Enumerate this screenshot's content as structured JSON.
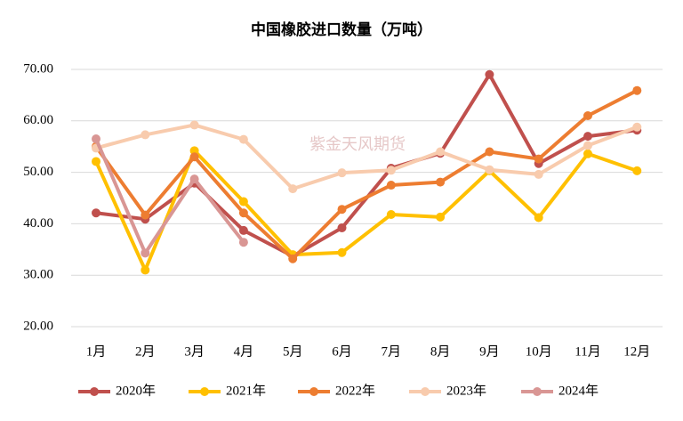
{
  "chart_data": {
    "type": "line",
    "title": "中国橡胶进口数量（万吨）",
    "watermark": "紫金天风期货",
    "categories": [
      "1月",
      "2月",
      "3月",
      "4月",
      "5月",
      "6月",
      "7月",
      "8月",
      "9月",
      "10月",
      "11月",
      "12月"
    ],
    "series": [
      {
        "name": "2020年",
        "color": "#c0504d",
        "values": [
          42.1,
          40.9,
          47.9,
          38.7,
          33.7,
          39.2,
          50.8,
          53.7,
          69.0,
          51.7,
          57.0,
          58.2
        ]
      },
      {
        "name": "2021年",
        "color": "#ffc000",
        "values": [
          52.1,
          31.0,
          54.2,
          44.3,
          34.0,
          34.4,
          41.8,
          41.3,
          50.3,
          41.2,
          53.6,
          50.3
        ]
      },
      {
        "name": "2022年",
        "color": "#ed7d31",
        "values": [
          55.0,
          41.7,
          53.0,
          42.1,
          33.2,
          42.8,
          47.5,
          48.1,
          54.0,
          52.6,
          61.0,
          65.9
        ]
      },
      {
        "name": "2023年",
        "color": "#f8cbad",
        "values": [
          54.7,
          57.3,
          59.2,
          56.4,
          46.8,
          49.9,
          50.4,
          54.0,
          50.5,
          49.6,
          55.2,
          58.8
        ]
      },
      {
        "name": "2024年",
        "color": "#d99694",
        "values": [
          56.5,
          34.3,
          48.7,
          36.4,
          null,
          null,
          null,
          null,
          null,
          null,
          null,
          null
        ]
      }
    ],
    "ylim": [
      20,
      70
    ],
    "yticks": [
      {
        "value": 20,
        "label": "20.00"
      },
      {
        "value": 30,
        "label": "30.00"
      },
      {
        "value": 40,
        "label": "40.00"
      },
      {
        "value": 50,
        "label": "50.00"
      },
      {
        "value": 60,
        "label": "60.00"
      },
      {
        "value": 70,
        "label": "70.00"
      }
    ],
    "grid": true,
    "legend": "bottom"
  }
}
